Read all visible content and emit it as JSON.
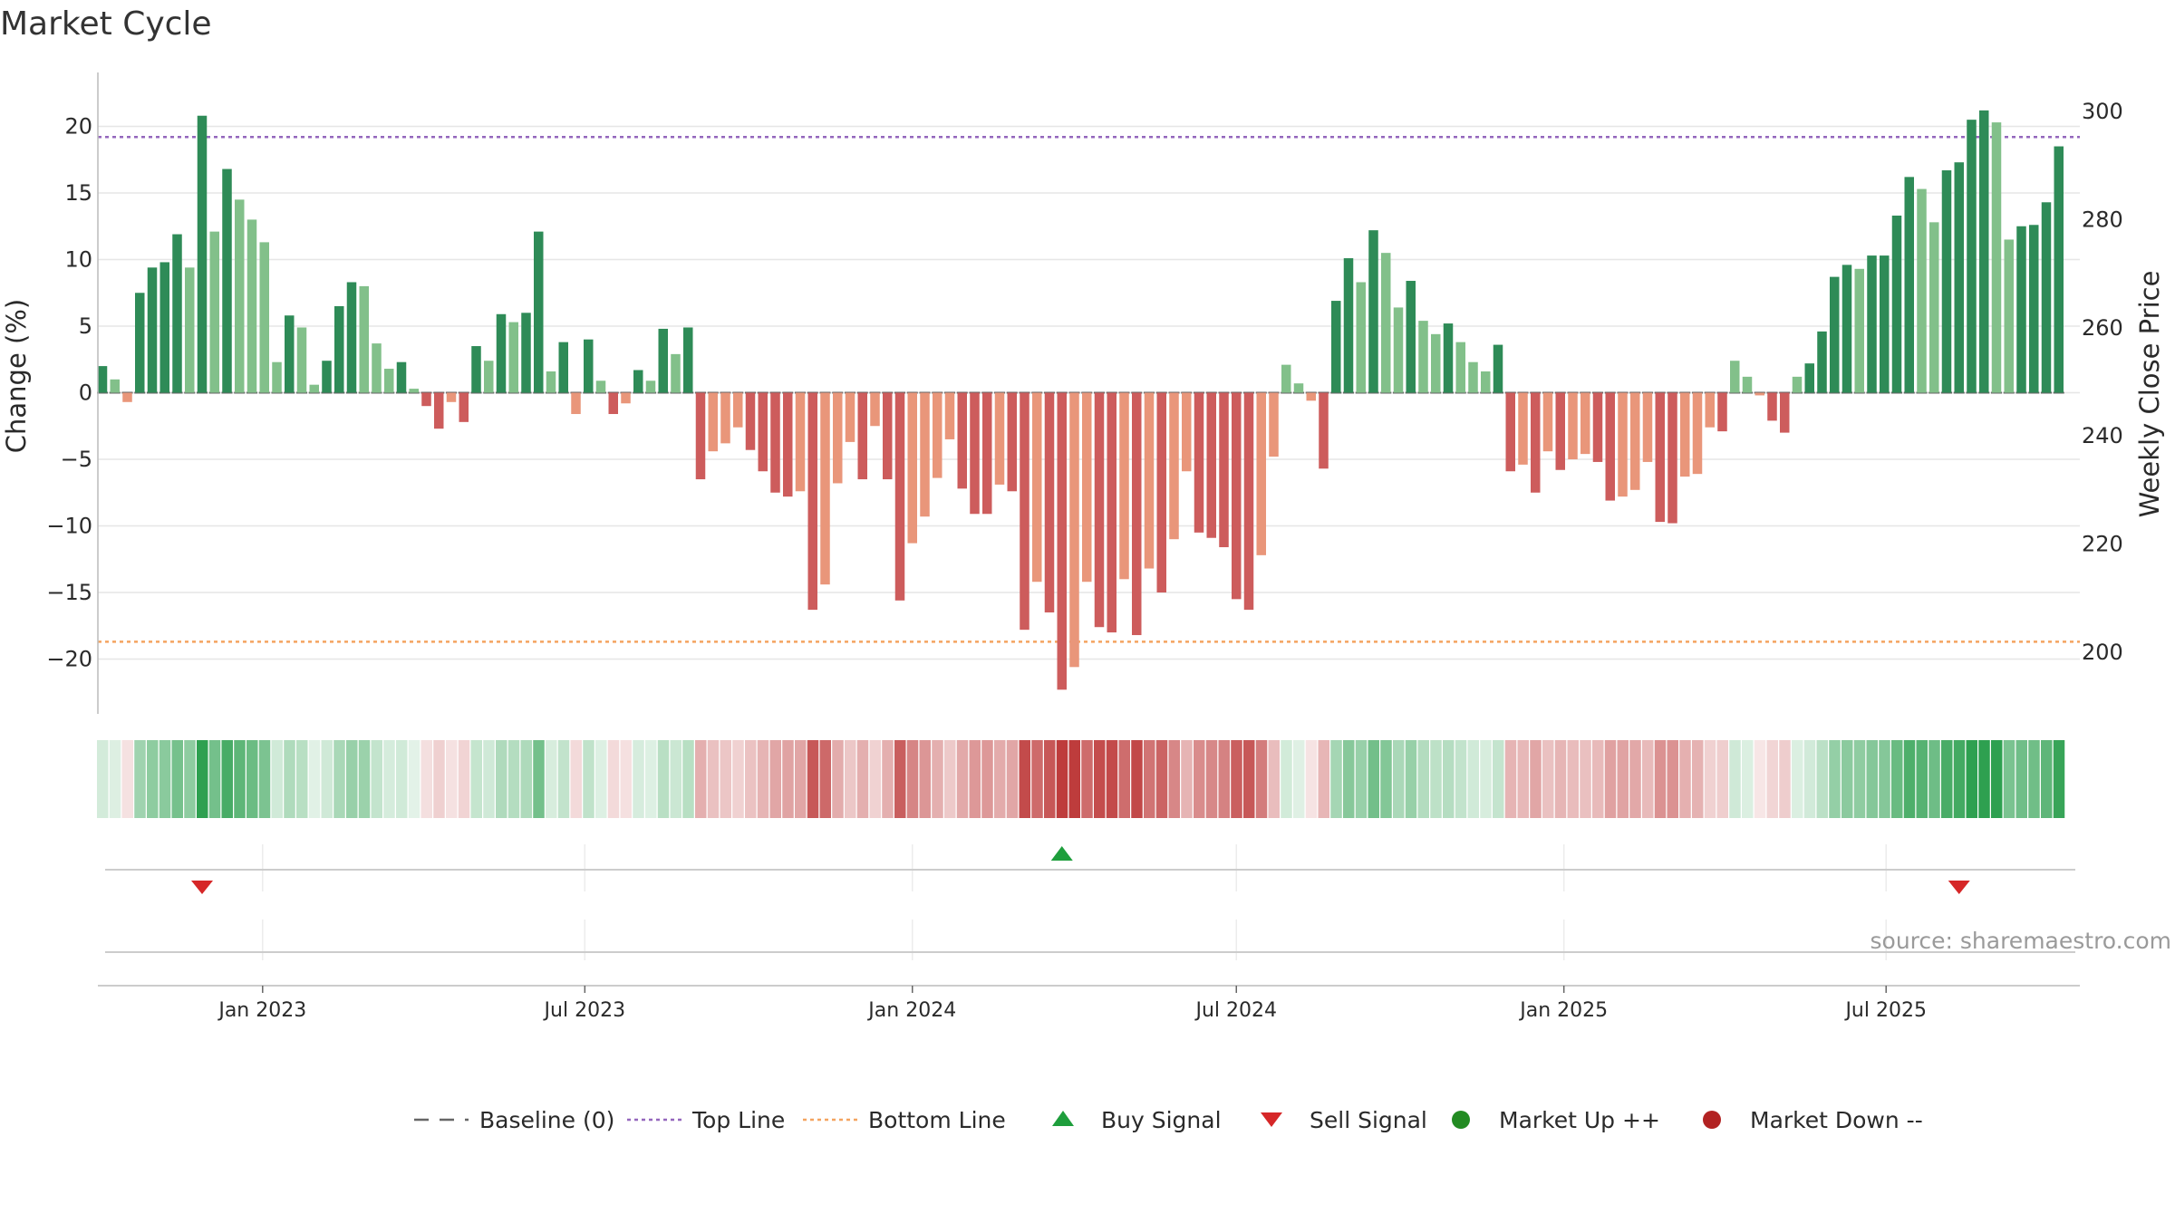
{
  "page": {
    "title": "Market Cycle",
    "source": "source: sharemaestro.com"
  },
  "colors": {
    "up_strong": "#2e8b57",
    "up_weak": "#82c08a",
    "down_strong": "#cd5c5c",
    "down_weak": "#e9967a",
    "top_line": "#9467bd",
    "bottom_line": "#f4a460",
    "baseline": "#666666",
    "buy": "#1e9e3c",
    "sell": "#d62728",
    "market_up": "#228b22",
    "market_down": "#b22222"
  },
  "legend": [
    {
      "key": "baseline",
      "label": "Baseline (0)"
    },
    {
      "key": "top",
      "label": "Top Line"
    },
    {
      "key": "bottom",
      "label": "Bottom Line"
    },
    {
      "key": "buy",
      "label": "Buy Signal"
    },
    {
      "key": "sell",
      "label": "Sell Signal"
    },
    {
      "key": "mup",
      "label": "Market Up ++"
    },
    {
      "key": "mdown",
      "label": "Market Down --"
    }
  ],
  "chart_data": {
    "type": "bar",
    "title": "Market Cycle",
    "ylabel": "Change (%)",
    "y2label": "Weekly Close Price",
    "ylim": [
      -24,
      24
    ],
    "y2lim": [
      184,
      310
    ],
    "yticks": [
      20,
      15,
      10,
      5,
      0,
      -5,
      -10,
      -15,
      -20
    ],
    "ytick_labels": [
      "20",
      "15",
      "10",
      "5",
      "0",
      "−5",
      "−10",
      "−15",
      "−20"
    ],
    "y2ticks": [
      300,
      280,
      260,
      240,
      220,
      200
    ],
    "top_line": 19.2,
    "bottom_line": -18.7,
    "baseline": 0,
    "start_date": "2022-10-03",
    "x_tick_labels": [
      "Jan 2023",
      "Jul 2023",
      "Jan 2024",
      "Jul 2024",
      "Jan 2025",
      "Jul 2025"
    ],
    "x_tick_dates": [
      "2023-01-01",
      "2023-07-01",
      "2024-01-01",
      "2024-07-01",
      "2025-01-01",
      "2025-07-01"
    ],
    "grid": true,
    "legend_position": "bottom",
    "values": [
      2.0,
      1.0,
      -0.7,
      7.5,
      9.4,
      9.8,
      11.9,
      9.4,
      20.8,
      12.1,
      16.8,
      14.5,
      13.0,
      11.3,
      2.3,
      5.8,
      4.9,
      0.6,
      2.4,
      6.5,
      8.3,
      8.0,
      3.7,
      1.8,
      2.3,
      0.3,
      -1.0,
      -2.7,
      -0.7,
      -2.2,
      3.5,
      2.4,
      5.9,
      5.3,
      6.0,
      12.1,
      1.6,
      3.8,
      -1.6,
      4.0,
      0.9,
      -1.6,
      -0.8,
      1.7,
      0.9,
      4.8,
      2.9,
      4.9,
      -6.5,
      -4.4,
      -3.8,
      -2.6,
      -4.3,
      -5.9,
      -7.5,
      -7.8,
      -7.4,
      -16.3,
      -14.4,
      -6.8,
      -3.7,
      -6.5,
      -2.5,
      -6.5,
      -15.6,
      -11.3,
      -9.3,
      -6.4,
      -3.5,
      -7.2,
      -9.1,
      -9.1,
      -6.9,
      -7.4,
      -17.8,
      -14.2,
      -16.5,
      -22.3,
      -20.6,
      -14.2,
      -17.6,
      -18.0,
      -14.0,
      -18.2,
      -13.2,
      -15.0,
      -11.0,
      -5.9,
      -10.5,
      -10.9,
      -11.6,
      -15.5,
      -16.3,
      -12.2,
      -4.8,
      2.1,
      0.7,
      -0.6,
      -5.7,
      6.9,
      10.1,
      8.3,
      12.2,
      10.5,
      6.4,
      8.4,
      5.4,
      4.4,
      5.2,
      3.8,
      2.3,
      1.6,
      3.6,
      -5.9,
      -5.4,
      -7.5,
      -4.4,
      -5.8,
      -5.0,
      -4.6,
      -5.2,
      -8.1,
      -7.8,
      -7.3,
      -5.2,
      -9.7,
      -9.8,
      -6.3,
      -6.1,
      -2.6,
      -2.9,
      2.4,
      1.2,
      -0.2,
      -2.1,
      -3.0,
      1.2,
      2.2,
      4.6,
      8.7,
      9.6,
      9.3,
      10.3,
      10.3,
      13.3,
      16.2,
      15.3,
      12.8,
      16.7,
      17.3,
      20.5,
      21.2,
      20.3,
      11.5,
      12.5,
      12.6,
      14.3,
      18.5
    ],
    "signals": [
      {
        "type": "sell",
        "week": 8
      },
      {
        "type": "buy",
        "week": 77
      },
      {
        "type": "sell",
        "week": 149
      }
    ]
  }
}
